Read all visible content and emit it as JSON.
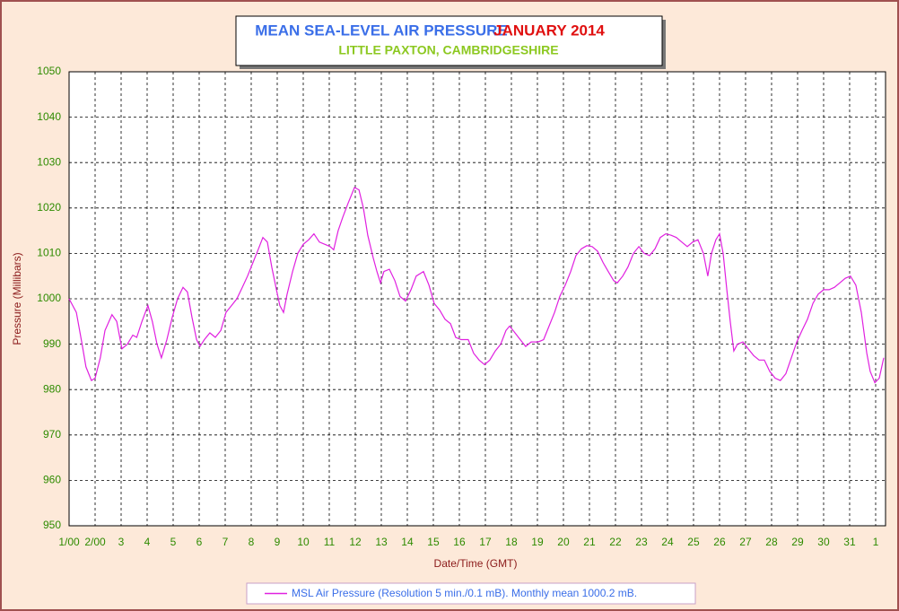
{
  "chart_data": {
    "type": "line",
    "title": "MEAN SEA-LEVEL AIR PRESSURE",
    "title_period": "JANUARY 2014",
    "subtitle": "LITTLE PAXTON, CAMBRIDGESHIRE",
    "y_label": "Pressure (Millibars)",
    "x_label": "Date/Time (GMT)",
    "grid": true,
    "ylim": [
      950,
      1050
    ],
    "yticks": [
      950,
      960,
      970,
      980,
      990,
      1000,
      1010,
      1020,
      1030,
      1040,
      1050
    ],
    "xlim": [
      0,
      31.38
    ],
    "xticks": [
      {
        "value": 0,
        "label": "1/00"
      },
      {
        "value": 1,
        "label": "2/00"
      },
      {
        "value": 2,
        "label": "3"
      },
      {
        "value": 3,
        "label": "4"
      },
      {
        "value": 4,
        "label": "5"
      },
      {
        "value": 5,
        "label": "6"
      },
      {
        "value": 6,
        "label": "7"
      },
      {
        "value": 7,
        "label": "8"
      },
      {
        "value": 8,
        "label": "9"
      },
      {
        "value": 9,
        "label": "10"
      },
      {
        "value": 10,
        "label": "11"
      },
      {
        "value": 11,
        "label": "12"
      },
      {
        "value": 12,
        "label": "13"
      },
      {
        "value": 13,
        "label": "14"
      },
      {
        "value": 14,
        "label": "15"
      },
      {
        "value": 15,
        "label": "16"
      },
      {
        "value": 16,
        "label": "17"
      },
      {
        "value": 17,
        "label": "18"
      },
      {
        "value": 18,
        "label": "19"
      },
      {
        "value": 19,
        "label": "20"
      },
      {
        "value": 20,
        "label": "21"
      },
      {
        "value": 21,
        "label": "22"
      },
      {
        "value": 22,
        "label": "23"
      },
      {
        "value": 23,
        "label": "24"
      },
      {
        "value": 24,
        "label": "25"
      },
      {
        "value": 25,
        "label": "26"
      },
      {
        "value": 26,
        "label": "27"
      },
      {
        "value": 27,
        "label": "28"
      },
      {
        "value": 28,
        "label": "29"
      },
      {
        "value": 29,
        "label": "30"
      },
      {
        "value": 30,
        "label": "31"
      },
      {
        "value": 31,
        "label": "1"
      }
    ],
    "x": [
      0,
      0.28,
      0.5,
      0.65,
      0.86,
      1.0,
      1.2,
      1.38,
      1.65,
      1.83,
      2.03,
      2.24,
      2.45,
      2.6,
      2.8,
      3.03,
      3.2,
      3.38,
      3.55,
      3.76,
      3.97,
      4.17,
      4.38,
      4.55,
      4.72,
      4.9,
      5.03,
      5.2,
      5.41,
      5.62,
      5.83,
      6.03,
      6.24,
      6.45,
      6.66,
      6.86,
      7.07,
      7.28,
      7.45,
      7.62,
      7.79,
      7.97,
      8.1,
      8.24,
      8.38,
      8.59,
      8.79,
      9.0,
      9.21,
      9.41,
      9.62,
      9.83,
      10.03,
      10.17,
      10.34,
      10.52,
      10.72,
      10.97,
      11.14,
      11.31,
      11.48,
      11.69,
      11.83,
      11.97,
      12.1,
      12.31,
      12.52,
      12.72,
      12.93,
      13.14,
      13.34,
      13.62,
      13.83,
      14.03,
      14.24,
      14.45,
      14.66,
      14.86,
      15.07,
      15.34,
      15.55,
      15.76,
      15.97,
      16.17,
      16.38,
      16.59,
      16.79,
      16.93,
      17.14,
      17.34,
      17.55,
      17.76,
      18.03,
      18.24,
      18.45,
      18.66,
      18.86,
      19.07,
      19.28,
      19.48,
      19.69,
      19.9,
      20.1,
      20.31,
      20.52,
      20.72,
      20.93,
      21.07,
      21.28,
      21.48,
      21.69,
      21.9,
      22.1,
      22.31,
      22.52,
      22.72,
      22.93,
      23.14,
      23.34,
      23.55,
      23.76,
      23.97,
      24.17,
      24.38,
      24.55,
      24.69,
      24.86,
      25.0,
      25.14,
      25.28,
      25.41,
      25.55,
      25.69,
      25.9,
      26.1,
      26.31,
      26.52,
      26.72,
      26.93,
      27.14,
      27.34,
      27.55,
      27.76,
      27.97,
      28.17,
      28.38,
      28.59,
      28.79,
      29.0,
      29.21,
      29.41,
      29.62,
      29.83,
      30.03,
      30.24,
      30.45,
      30.66,
      30.79,
      30.97,
      31.14,
      31.31
    ],
    "series": [
      {
        "name": "MSL Air Pressure (Resolution 5 min./0.1 mB). Monthly mean 1000.2 mB.",
        "color": "#e020e0",
        "values": [
          1000,
          997,
          990,
          985,
          982,
          982.5,
          987,
          993,
          996.5,
          995,
          989,
          990,
          992,
          991.5,
          995,
          998.5,
          995,
          990,
          987,
          991,
          996,
          1000,
          1002.5,
          1001.5,
          996,
          991,
          989.5,
          991,
          992.5,
          991.5,
          993,
          997,
          998.5,
          1000,
          1002.5,
          1005,
          1008,
          1011,
          1013.5,
          1012.5,
          1007,
          1002,
          998.5,
          997,
          1001,
          1006,
          1010,
          1012,
          1013,
          1014.3,
          1012.5,
          1012,
          1011.5,
          1010.8,
          1015,
          1018,
          1021,
          1024.5,
          1024,
          1020,
          1014,
          1009,
          1006,
          1003.5,
          1006,
          1006.5,
          1004,
          1000.5,
          999.5,
          1002,
          1005,
          1006,
          1003,
          999,
          997.5,
          995.5,
          994.5,
          991.5,
          991,
          991,
          988,
          986.5,
          985.5,
          986.5,
          988.5,
          990,
          993,
          994,
          992.5,
          991,
          989.5,
          990.5,
          990.5,
          991,
          994,
          997,
          1000.5,
          1003,
          1006,
          1009.5,
          1011,
          1011.7,
          1011.5,
          1010.5,
          1008,
          1006,
          1004,
          1003.5,
          1005,
          1007,
          1010,
          1011.5,
          1010,
          1009.5,
          1011,
          1013.5,
          1014.3,
          1014,
          1013.5,
          1012.5,
          1011.5,
          1012.5,
          1013,
          1010,
          1005,
          1010,
          1013,
          1014.3,
          1010,
          1002,
          995,
          988.5,
          990,
          990.5,
          989,
          987.5,
          986.5,
          986.5,
          984,
          982.5,
          982,
          983.5,
          987,
          990.5,
          993,
          995.5,
          999,
          1001,
          1002,
          1002,
          1002.5,
          1003.5,
          1004.5,
          1005,
          1003,
          997,
          988,
          984,
          981.5,
          982.5,
          987
        ]
      }
    ]
  }
}
